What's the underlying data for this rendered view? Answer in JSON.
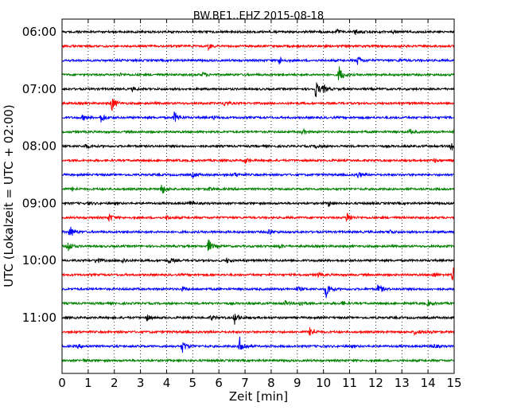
{
  "chart_data": {
    "type": "line",
    "title": "BW.BE1..EHZ 2015-08-18",
    "xlabel": "Zeit  [min]",
    "ylabel": "UTC (Lokalzeit = UTC + 02:00)",
    "xlim": [
      0,
      15
    ],
    "xticks": [
      "0",
      "1",
      "2",
      "3",
      "4",
      "5",
      "6",
      "7",
      "8",
      "9",
      "10",
      "11",
      "12",
      "13",
      "14",
      "15"
    ],
    "yticks": [
      "06:00",
      "07:00",
      "08:00",
      "09:00",
      "10:00",
      "11:00"
    ],
    "grid": "vertical dotted",
    "colors": [
      "#000000",
      "#ff0000",
      "#0000ff",
      "#008000"
    ],
    "series": [
      {
        "start": "06:00",
        "color": "#000000",
        "events": [
          [
            10.5,
            0.25
          ],
          [
            11.2,
            0.3
          ],
          [
            12.7,
            0.15
          ]
        ]
      },
      {
        "start": "06:15",
        "color": "#ff0000",
        "events": [
          [
            5.6,
            0.3
          ],
          [
            12.8,
            0.15
          ]
        ]
      },
      {
        "start": "06:30",
        "color": "#0000ff",
        "events": [
          [
            8.3,
            0.45
          ],
          [
            11.3,
            0.5
          ],
          [
            12.9,
            0.15
          ]
        ]
      },
      {
        "start": "06:45",
        "color": "#008000",
        "events": [
          [
            10.6,
            1.0
          ],
          [
            5.4,
            0.3
          ],
          [
            2.2,
            0.15
          ]
        ]
      },
      {
        "start": "07:00",
        "color": "#000000",
        "events": [
          [
            9.7,
            1.0
          ],
          [
            10.0,
            0.4
          ],
          [
            2.7,
            0.2
          ]
        ]
      },
      {
        "start": "07:15",
        "color": "#ff0000",
        "events": [
          [
            1.9,
            0.85
          ],
          [
            6.2,
            0.35
          ]
        ]
      },
      {
        "start": "07:30",
        "color": "#0000ff",
        "events": [
          [
            1.5,
            0.55
          ],
          [
            4.3,
            0.65
          ],
          [
            0.8,
            0.3
          ],
          [
            5.8,
            0.2
          ]
        ]
      },
      {
        "start": "07:45",
        "color": "#008000",
        "events": [
          [
            9.2,
            0.3
          ],
          [
            13.3,
            0.25
          ],
          [
            15.0,
            0.35
          ]
        ]
      },
      {
        "start": "08:00",
        "color": "#000000",
        "events": [
          [
            14.9,
            0.7
          ],
          [
            0.9,
            0.25
          ],
          [
            9.7,
            0.2
          ]
        ]
      },
      {
        "start": "08:15",
        "color": "#ff0000",
        "events": [
          [
            7.0,
            0.3
          ],
          [
            14.2,
            0.2
          ]
        ]
      },
      {
        "start": "08:30",
        "color": "#0000ff",
        "events": [
          [
            5.0,
            0.3
          ],
          [
            11.3,
            0.35
          ],
          [
            6.6,
            0.2
          ]
        ]
      },
      {
        "start": "08:45",
        "color": "#008000",
        "events": [
          [
            3.8,
            0.65
          ],
          [
            5.6,
            0.2
          ],
          [
            0.4,
            0.2
          ]
        ]
      },
      {
        "start": "09:00",
        "color": "#000000",
        "events": [
          [
            10.2,
            0.3
          ],
          [
            4.9,
            0.25
          ],
          [
            1.0,
            0.15
          ]
        ]
      },
      {
        "start": "09:15",
        "color": "#ff0000",
        "events": [
          [
            10.9,
            0.6
          ],
          [
            1.8,
            0.4
          ],
          [
            4.0,
            0.2
          ]
        ]
      },
      {
        "start": "09:30",
        "color": "#0000ff",
        "events": [
          [
            0.3,
            0.75
          ],
          [
            7.9,
            0.35
          ],
          [
            12.5,
            0.3
          ]
        ]
      },
      {
        "start": "09:45",
        "color": "#008000",
        "events": [
          [
            0.2,
            0.8
          ],
          [
            5.6,
            0.75
          ],
          [
            8.3,
            0.2
          ]
        ]
      },
      {
        "start": "10:00",
        "color": "#000000",
        "events": [
          [
            1.3,
            0.35
          ],
          [
            2.3,
            0.3
          ],
          [
            4.1,
            0.3
          ],
          [
            6.3,
            0.25
          ]
        ]
      },
      {
        "start": "10:15",
        "color": "#ff0000",
        "events": [
          [
            14.95,
            0.9
          ],
          [
            14.2,
            0.25
          ],
          [
            9.8,
            0.2
          ]
        ]
      },
      {
        "start": "10:30",
        "color": "#0000ff",
        "events": [
          [
            10.1,
            1.0
          ],
          [
            12.1,
            0.6
          ],
          [
            9.0,
            0.3
          ],
          [
            4.6,
            0.2
          ]
        ]
      },
      {
        "start": "10:45",
        "color": "#008000",
        "events": [
          [
            8.5,
            0.3
          ],
          [
            9.1,
            0.35
          ],
          [
            10.7,
            0.2
          ],
          [
            14.0,
            0.3
          ]
        ]
      },
      {
        "start": "11:00",
        "color": "#000000",
        "events": [
          [
            3.2,
            0.45
          ],
          [
            6.6,
            0.7
          ],
          [
            5.7,
            0.3
          ]
        ]
      },
      {
        "start": "11:15",
        "color": "#ff0000",
        "events": [
          [
            9.5,
            0.75
          ],
          [
            13.5,
            0.3
          ],
          [
            14.0,
            0.3
          ]
        ]
      },
      {
        "start": "11:30",
        "color": "#0000ff",
        "events": [
          [
            4.6,
            0.75
          ],
          [
            6.8,
            1.0
          ],
          [
            0.6,
            0.2
          ],
          [
            14.2,
            0.25
          ]
        ]
      },
      {
        "start": "11:45",
        "color": "#008000",
        "events": [
          [
            0.8,
            0.15
          ]
        ]
      }
    ]
  }
}
